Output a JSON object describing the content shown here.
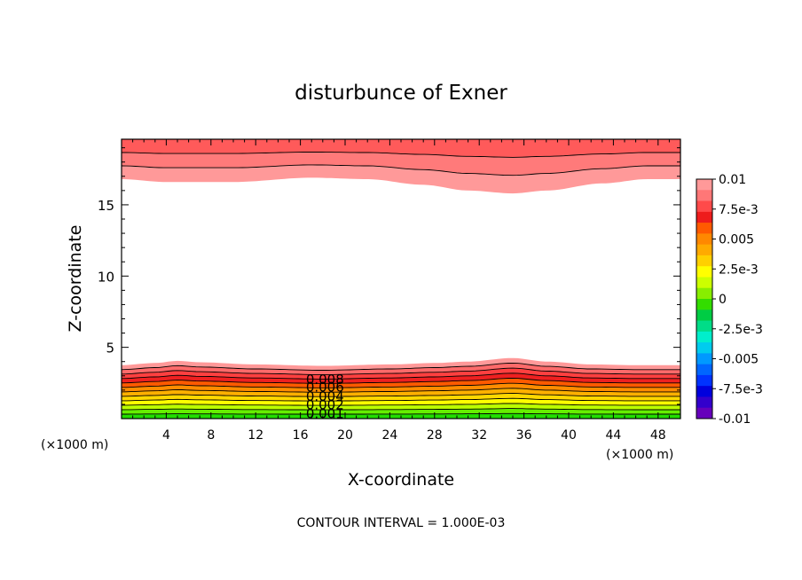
{
  "chart_data": {
    "type": "contour",
    "title": "disturbunce of Exner",
    "xlabel": "X-coordinate",
    "ylabel": "Z-coordinate",
    "x_unit": "(×1000 m)",
    "footnote": "CONTOUR INTERVAL = 1.000E-03",
    "xlim": [
      0,
      50
    ],
    "ylim": [
      0,
      19.6
    ],
    "x_ticks": [
      4,
      8,
      12,
      16,
      20,
      24,
      28,
      32,
      36,
      40,
      44,
      48
    ],
    "y_ticks": [
      5,
      10,
      15
    ],
    "contour_interval": 0.001,
    "contour_labels": [
      "0.008",
      "0.006",
      "0.004",
      "0.002",
      "0.001"
    ],
    "colorbar": {
      "labels": [
        "0.01",
        "7.5e-3",
        "0.005",
        "2.5e-3",
        "0",
        "-2.5e-3",
        "-0.005",
        "-7.5e-3",
        "-0.01"
      ],
      "colors": [
        "#ff9999",
        "#ff7777",
        "#ff4a4a",
        "#ee1c1c",
        "#ff5a00",
        "#ff8800",
        "#ffaa00",
        "#ffd000",
        "#ffff00",
        "#ccff00",
        "#88ee00",
        "#33dd00",
        "#00cc44",
        "#00dd88",
        "#00eecc",
        "#00ccee",
        "#0099ff",
        "#0066ff",
        "#0033ff",
        "#0000dd",
        "#3300cc",
        "#6600bb"
      ]
    },
    "bottom_layer": {
      "description_x": [
        0,
        3,
        5,
        7,
        12,
        18,
        24,
        28,
        31,
        35,
        38,
        42,
        46,
        50
      ],
      "top_z": [
        3.75,
        3.9,
        4.05,
        3.95,
        3.8,
        3.7,
        3.8,
        3.9,
        4.0,
        4.25,
        4.0,
        3.8,
        3.75,
        3.75
      ]
    },
    "top_layer": {
      "description_x": [
        0,
        4,
        10,
        17,
        22,
        27,
        31,
        35,
        38,
        43,
        47,
        50
      ],
      "bottom_z": [
        16.8,
        16.6,
        16.6,
        16.9,
        16.8,
        16.4,
        16.0,
        15.8,
        16.0,
        16.5,
        16.8,
        16.8
      ]
    }
  }
}
